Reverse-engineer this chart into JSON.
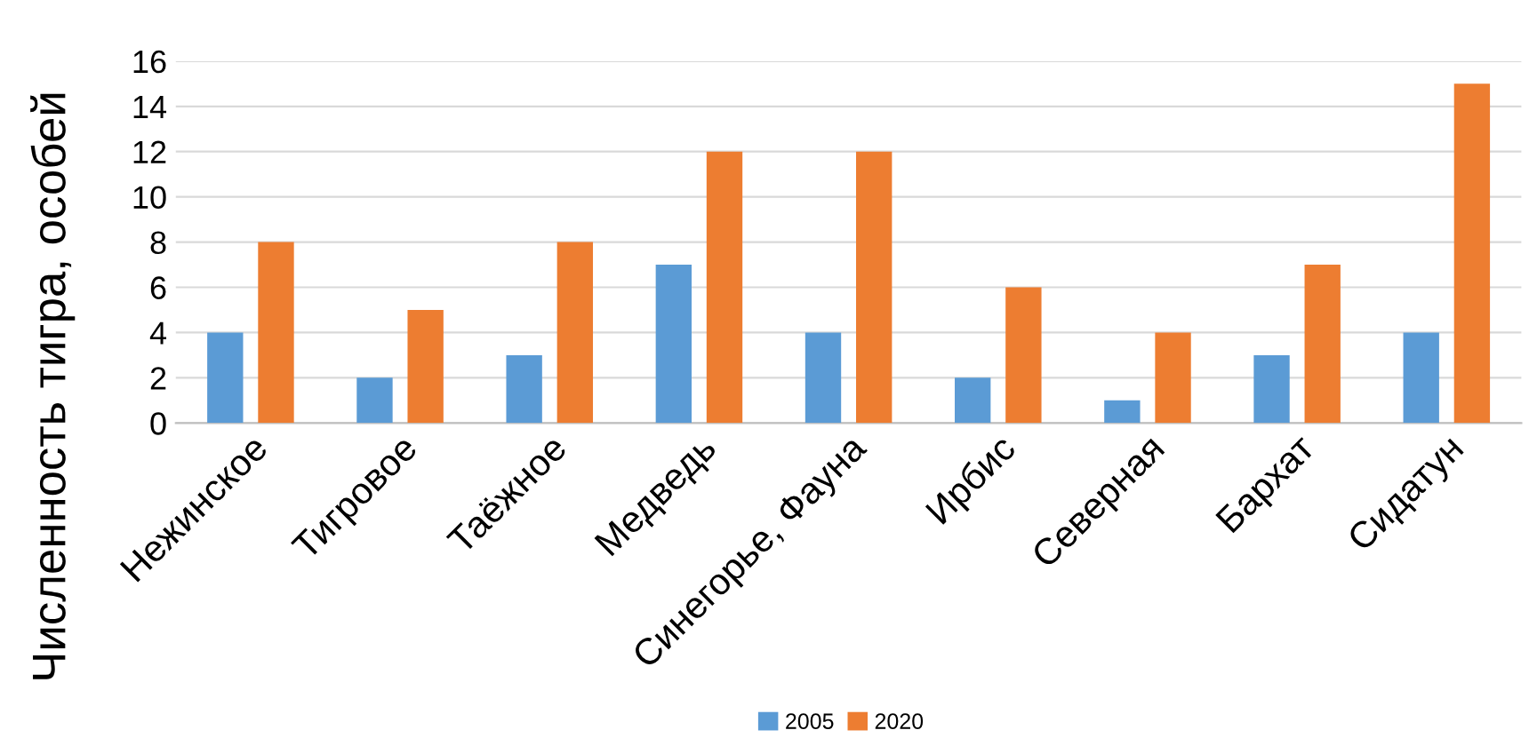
{
  "chart_data": {
    "type": "bar",
    "ylabel": "Численность тигра, особей",
    "categories": [
      "Нежинское",
      "Тигровое",
      "Таёжное",
      "Медведь",
      "Синегорье, Фауна",
      "Ирбис",
      "Северная",
      "Бархат",
      "Сидатун"
    ],
    "series": [
      {
        "name": "2005",
        "color": "#5b9bd5",
        "values": [
          4,
          2,
          3,
          7,
          4,
          2,
          1,
          3,
          4
        ]
      },
      {
        "name": "2020",
        "color": "#ed7d31",
        "values": [
          8,
          5,
          8,
          12,
          12,
          6,
          4,
          7,
          15
        ]
      }
    ],
    "ylim": [
      0,
      16
    ],
    "yticks": [
      0,
      2,
      4,
      6,
      8,
      10,
      12,
      14,
      16
    ],
    "grid": "y",
    "legend": "bottom"
  }
}
